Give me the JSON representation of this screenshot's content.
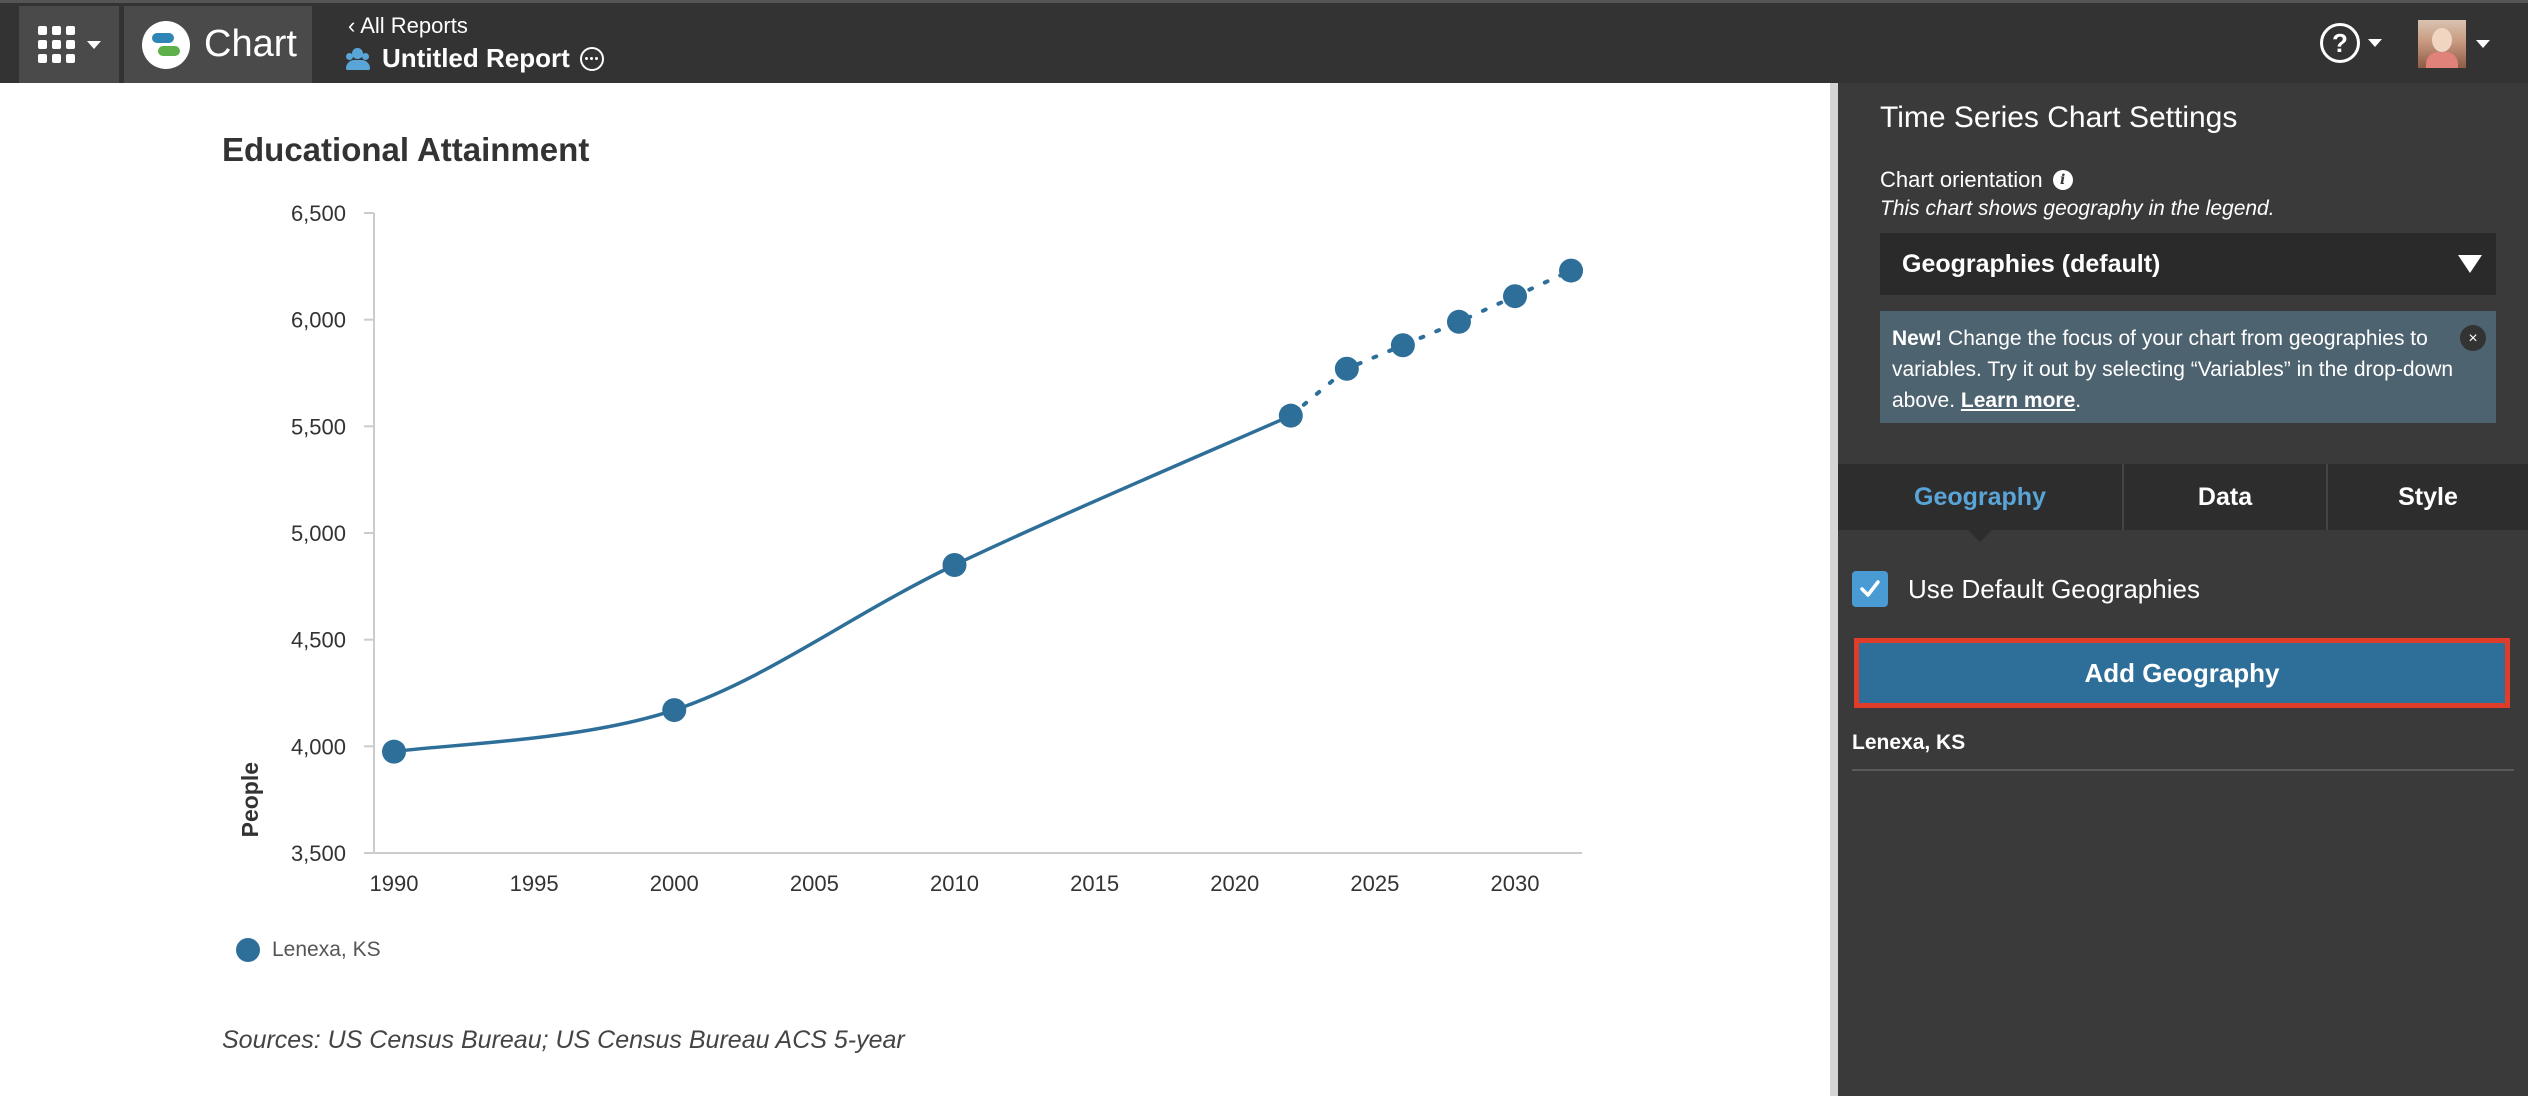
{
  "topbar": {
    "app_name": "Chart",
    "back_link": "All Reports",
    "report_title": "Untitled Report",
    "help_symbol": "?"
  },
  "icons": {
    "apps": "apps-grid-icon",
    "logo": "chart-logo-icon",
    "team": "people-icon",
    "more": "more-options-icon",
    "help": "help-icon",
    "avatar": "user-avatar",
    "info": "info-icon",
    "check": "checkmark-icon",
    "close": "close-icon"
  },
  "chart": {
    "title": "Educational Attainment",
    "legend_label": "Lenexa, KS",
    "sources": "Sources: US Census Bureau; US Census Bureau ACS 5-year"
  },
  "chart_data": {
    "type": "line",
    "title": "Educational Attainment",
    "xlabel": "",
    "ylabel": "People",
    "xlim": [
      1990,
      2033
    ],
    "ylim": [
      3500,
      6500
    ],
    "x_ticks": [
      1990,
      1995,
      2000,
      2005,
      2010,
      2015,
      2020,
      2025,
      2030
    ],
    "y_ticks": [
      3500,
      4000,
      4500,
      5000,
      5500,
      6000,
      6500
    ],
    "series": [
      {
        "name": "Lenexa, KS",
        "color": "#2e6f9a",
        "style": "solid",
        "x": [
          1990,
          2000,
          2010,
          2022
        ],
        "y": [
          3975,
          4170,
          4850,
          5550
        ]
      },
      {
        "name": "Lenexa, KS",
        "color": "#2e6f9a",
        "style": "dotted",
        "x": [
          2022,
          2024,
          2026,
          2028,
          2030,
          2032
        ],
        "y": [
          5550,
          5770,
          5880,
          5990,
          6110,
          6230
        ]
      }
    ],
    "legend_position": "bottom-left",
    "grid": false
  },
  "panel": {
    "title": "Time Series Chart Settings",
    "orientation_label": "Chart orientation",
    "info_symbol": "i",
    "orientation_note": "This chart shows geography in the legend.",
    "select_value": "Geographies (default)",
    "notice": {
      "new_label": "New!",
      "text": " Change the focus of your chart from geographies to variables. Try it out by selecting “Variables” in the drop-down above. ",
      "learn_more": "Learn more",
      "period": ".",
      "close_symbol": "×"
    },
    "tabs": [
      {
        "label": "Geography",
        "active": true
      },
      {
        "label": "Data",
        "active": false
      },
      {
        "label": "Style",
        "active": false
      }
    ],
    "use_default_label": "Use Default Geographies",
    "add_geography_label": "Add Geography",
    "geographies": [
      "Lenexa, KS"
    ]
  }
}
